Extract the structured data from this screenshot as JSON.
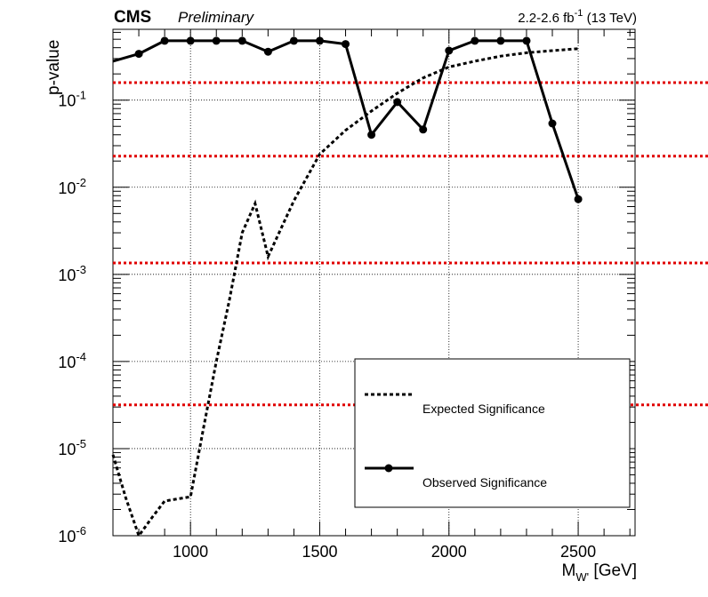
{
  "header": {
    "experiment": "CMS",
    "status": "Preliminary",
    "lumi_main": "2.2-2.6 fb",
    "lumi_sup": "-1",
    "lumi_energy": " (13 TeV)"
  },
  "chart_data": {
    "type": "line",
    "ylabel": "p-value",
    "xlabel_main": "M",
    "xlabel_sub": "W'",
    "xlabel_unit": " [GeV]",
    "xlim": [
      700,
      2720
    ],
    "ylim": [
      1e-06,
      0.65
    ],
    "yscale": "log",
    "grid": true,
    "x_ticks": [
      1000,
      1500,
      2000,
      2500
    ],
    "x_tick_labels": [
      "1000",
      "1500",
      "2000",
      "2500"
    ],
    "y_ticks": [
      {
        "value": 1e-06,
        "mantissa": "10",
        "exp": "-6"
      },
      {
        "value": 1e-05,
        "mantissa": "10",
        "exp": "-5"
      },
      {
        "value": 0.0001,
        "mantissa": "10",
        "exp": "-4"
      },
      {
        "value": 0.001,
        "mantissa": "10",
        "exp": "-3"
      },
      {
        "value": 0.01,
        "mantissa": "10",
        "exp": "-2"
      },
      {
        "value": 0.1,
        "mantissa": "10",
        "exp": "-1"
      }
    ],
    "sigma_lines": [
      0.1587,
      0.02275,
      0.00135,
      3.17e-05
    ],
    "sigma_color": "#e00000",
    "series": [
      {
        "name": "Expected Significance",
        "style": "dashed",
        "color": "#000000",
        "x": [
          700,
          750,
          800,
          850,
          900,
          1000,
          1050,
          1100,
          1150,
          1200,
          1250,
          1300,
          1400,
          1500,
          1600,
          1700,
          1800,
          1900,
          2000,
          2100,
          2200,
          2300,
          2400,
          2500
        ],
        "y": [
          8.5e-06,
          2.7e-06,
          1e-06,
          1.6e-06,
          2.5e-06,
          2.8e-06,
          1.7e-05,
          0.0001,
          0.0005,
          0.003,
          0.0065,
          0.0016,
          0.007,
          0.024,
          0.045,
          0.075,
          0.12,
          0.18,
          0.24,
          0.28,
          0.32,
          0.35,
          0.37,
          0.39
        ]
      },
      {
        "name": "Observed Significance",
        "style": "solid-markers",
        "color": "#000000",
        "x": [
          700,
          800,
          900,
          1000,
          1100,
          1200,
          1300,
          1400,
          1500,
          1600,
          1700,
          1800,
          1900,
          2000,
          2100,
          2200,
          2300,
          2400,
          2500
        ],
        "y": [
          0.28,
          0.34,
          0.48,
          0.48,
          0.48,
          0.48,
          0.36,
          0.48,
          0.48,
          0.44,
          0.04,
          0.095,
          0.046,
          0.37,
          0.48,
          0.48,
          0.48,
          0.054,
          0.0073
        ],
        "markers_from_index": 1
      }
    ],
    "legend": {
      "placement": "bottom-right"
    }
  }
}
